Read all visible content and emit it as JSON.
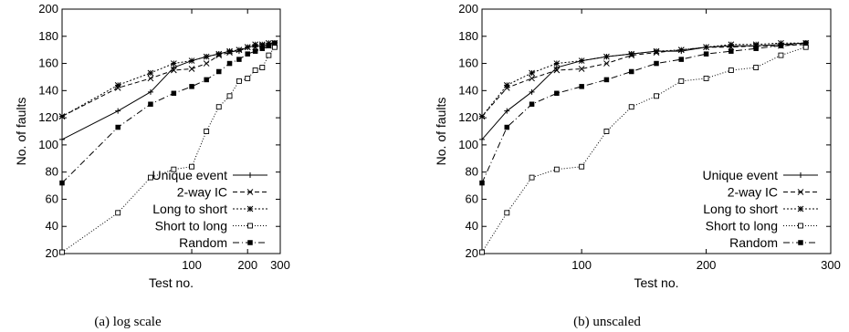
{
  "chart_data": [
    {
      "type": "line",
      "caption": "(a) log scale",
      "xlabel": "Test no.",
      "ylabel": "No. of faults",
      "xscale": "log",
      "xlim": [
        20,
        300
      ],
      "ylim": [
        20,
        200
      ],
      "xticks": [
        100,
        200,
        300
      ],
      "yticks": [
        20,
        40,
        60,
        80,
        100,
        120,
        140,
        160,
        180,
        200
      ],
      "legend_position": "bottom-right",
      "series": [
        {
          "name": "Unique event",
          "marker": "plus",
          "dash": "solid",
          "x": [
            20,
            40,
            60,
            80,
            100,
            120,
            140,
            160,
            180,
            200,
            220,
            240,
            260,
            280
          ],
          "y": [
            104,
            125,
            139,
            157,
            162,
            165,
            167,
            169,
            169,
            172,
            173,
            173,
            174,
            175
          ]
        },
        {
          "name": "2-way IC",
          "marker": "x",
          "dash": "dash",
          "x": [
            20,
            40,
            60,
            80,
            100,
            120,
            140,
            160,
            180,
            200,
            220,
            240,
            260,
            280
          ],
          "y": [
            121,
            142,
            149,
            155,
            156,
            160,
            166,
            168,
            170,
            172,
            172,
            173,
            173,
            174
          ]
        },
        {
          "name": "Long to short",
          "marker": "star",
          "dash": "dot",
          "x": [
            20,
            40,
            60,
            80,
            100,
            120,
            140,
            160,
            180,
            200,
            220,
            240,
            260,
            280
          ],
          "y": [
            121,
            144,
            153,
            160,
            162,
            165,
            167,
            169,
            170,
            172,
            174,
            174,
            175,
            175
          ]
        },
        {
          "name": "Short to long",
          "marker": "open-square",
          "dash": "finedot",
          "x": [
            20,
            40,
            60,
            80,
            100,
            120,
            140,
            160,
            180,
            200,
            220,
            240,
            260,
            280
          ],
          "y": [
            21,
            50,
            76,
            82,
            84,
            110,
            128,
            136,
            147,
            149,
            155,
            157,
            166,
            172
          ]
        },
        {
          "name": "Random",
          "marker": "filled-square",
          "dash": "dashdot",
          "x": [
            20,
            40,
            60,
            80,
            100,
            120,
            140,
            160,
            180,
            200,
            220,
            240,
            260,
            280
          ],
          "y": [
            72,
            113,
            130,
            138,
            143,
            148,
            154,
            160,
            163,
            167,
            169,
            171,
            173,
            175
          ]
        }
      ]
    },
    {
      "type": "line",
      "caption": "(b) unscaled",
      "xlabel": "Test no.",
      "ylabel": "No. of faults",
      "xscale": "linear",
      "xlim": [
        20,
        300
      ],
      "ylim": [
        20,
        200
      ],
      "xticks": [
        100,
        200,
        300
      ],
      "yticks": [
        20,
        40,
        60,
        80,
        100,
        120,
        140,
        160,
        180,
        200
      ],
      "legend_position": "bottom-right",
      "series": [
        {
          "name": "Unique event",
          "marker": "plus",
          "dash": "solid",
          "x": [
            20,
            40,
            60,
            80,
            100,
            120,
            140,
            160,
            180,
            200,
            220,
            240,
            260,
            280
          ],
          "y": [
            104,
            125,
            139,
            157,
            162,
            165,
            167,
            169,
            169,
            172,
            173,
            173,
            174,
            175
          ]
        },
        {
          "name": "2-way IC",
          "marker": "x",
          "dash": "dash",
          "x": [
            20,
            40,
            60,
            80,
            100,
            120,
            140,
            160,
            180,
            200,
            220,
            240,
            260,
            280
          ],
          "y": [
            121,
            142,
            149,
            155,
            156,
            160,
            166,
            168,
            170,
            172,
            172,
            173,
            173,
            174
          ]
        },
        {
          "name": "Long to short",
          "marker": "star",
          "dash": "dot",
          "x": [
            20,
            40,
            60,
            80,
            100,
            120,
            140,
            160,
            180,
            200,
            220,
            240,
            260,
            280
          ],
          "y": [
            121,
            144,
            153,
            160,
            162,
            165,
            167,
            169,
            170,
            172,
            174,
            174,
            175,
            175
          ]
        },
        {
          "name": "Short to long",
          "marker": "open-square",
          "dash": "finedot",
          "x": [
            20,
            40,
            60,
            80,
            100,
            120,
            140,
            160,
            180,
            200,
            220,
            240,
            260,
            280
          ],
          "y": [
            21,
            50,
            76,
            82,
            84,
            110,
            128,
            136,
            147,
            149,
            155,
            157,
            166,
            172
          ]
        },
        {
          "name": "Random",
          "marker": "filled-square",
          "dash": "dashdot",
          "x": [
            20,
            40,
            60,
            80,
            100,
            120,
            140,
            160,
            180,
            200,
            220,
            240,
            260,
            280
          ],
          "y": [
            72,
            113,
            130,
            138,
            143,
            148,
            154,
            160,
            163,
            167,
            169,
            171,
            173,
            175
          ]
        }
      ]
    }
  ]
}
